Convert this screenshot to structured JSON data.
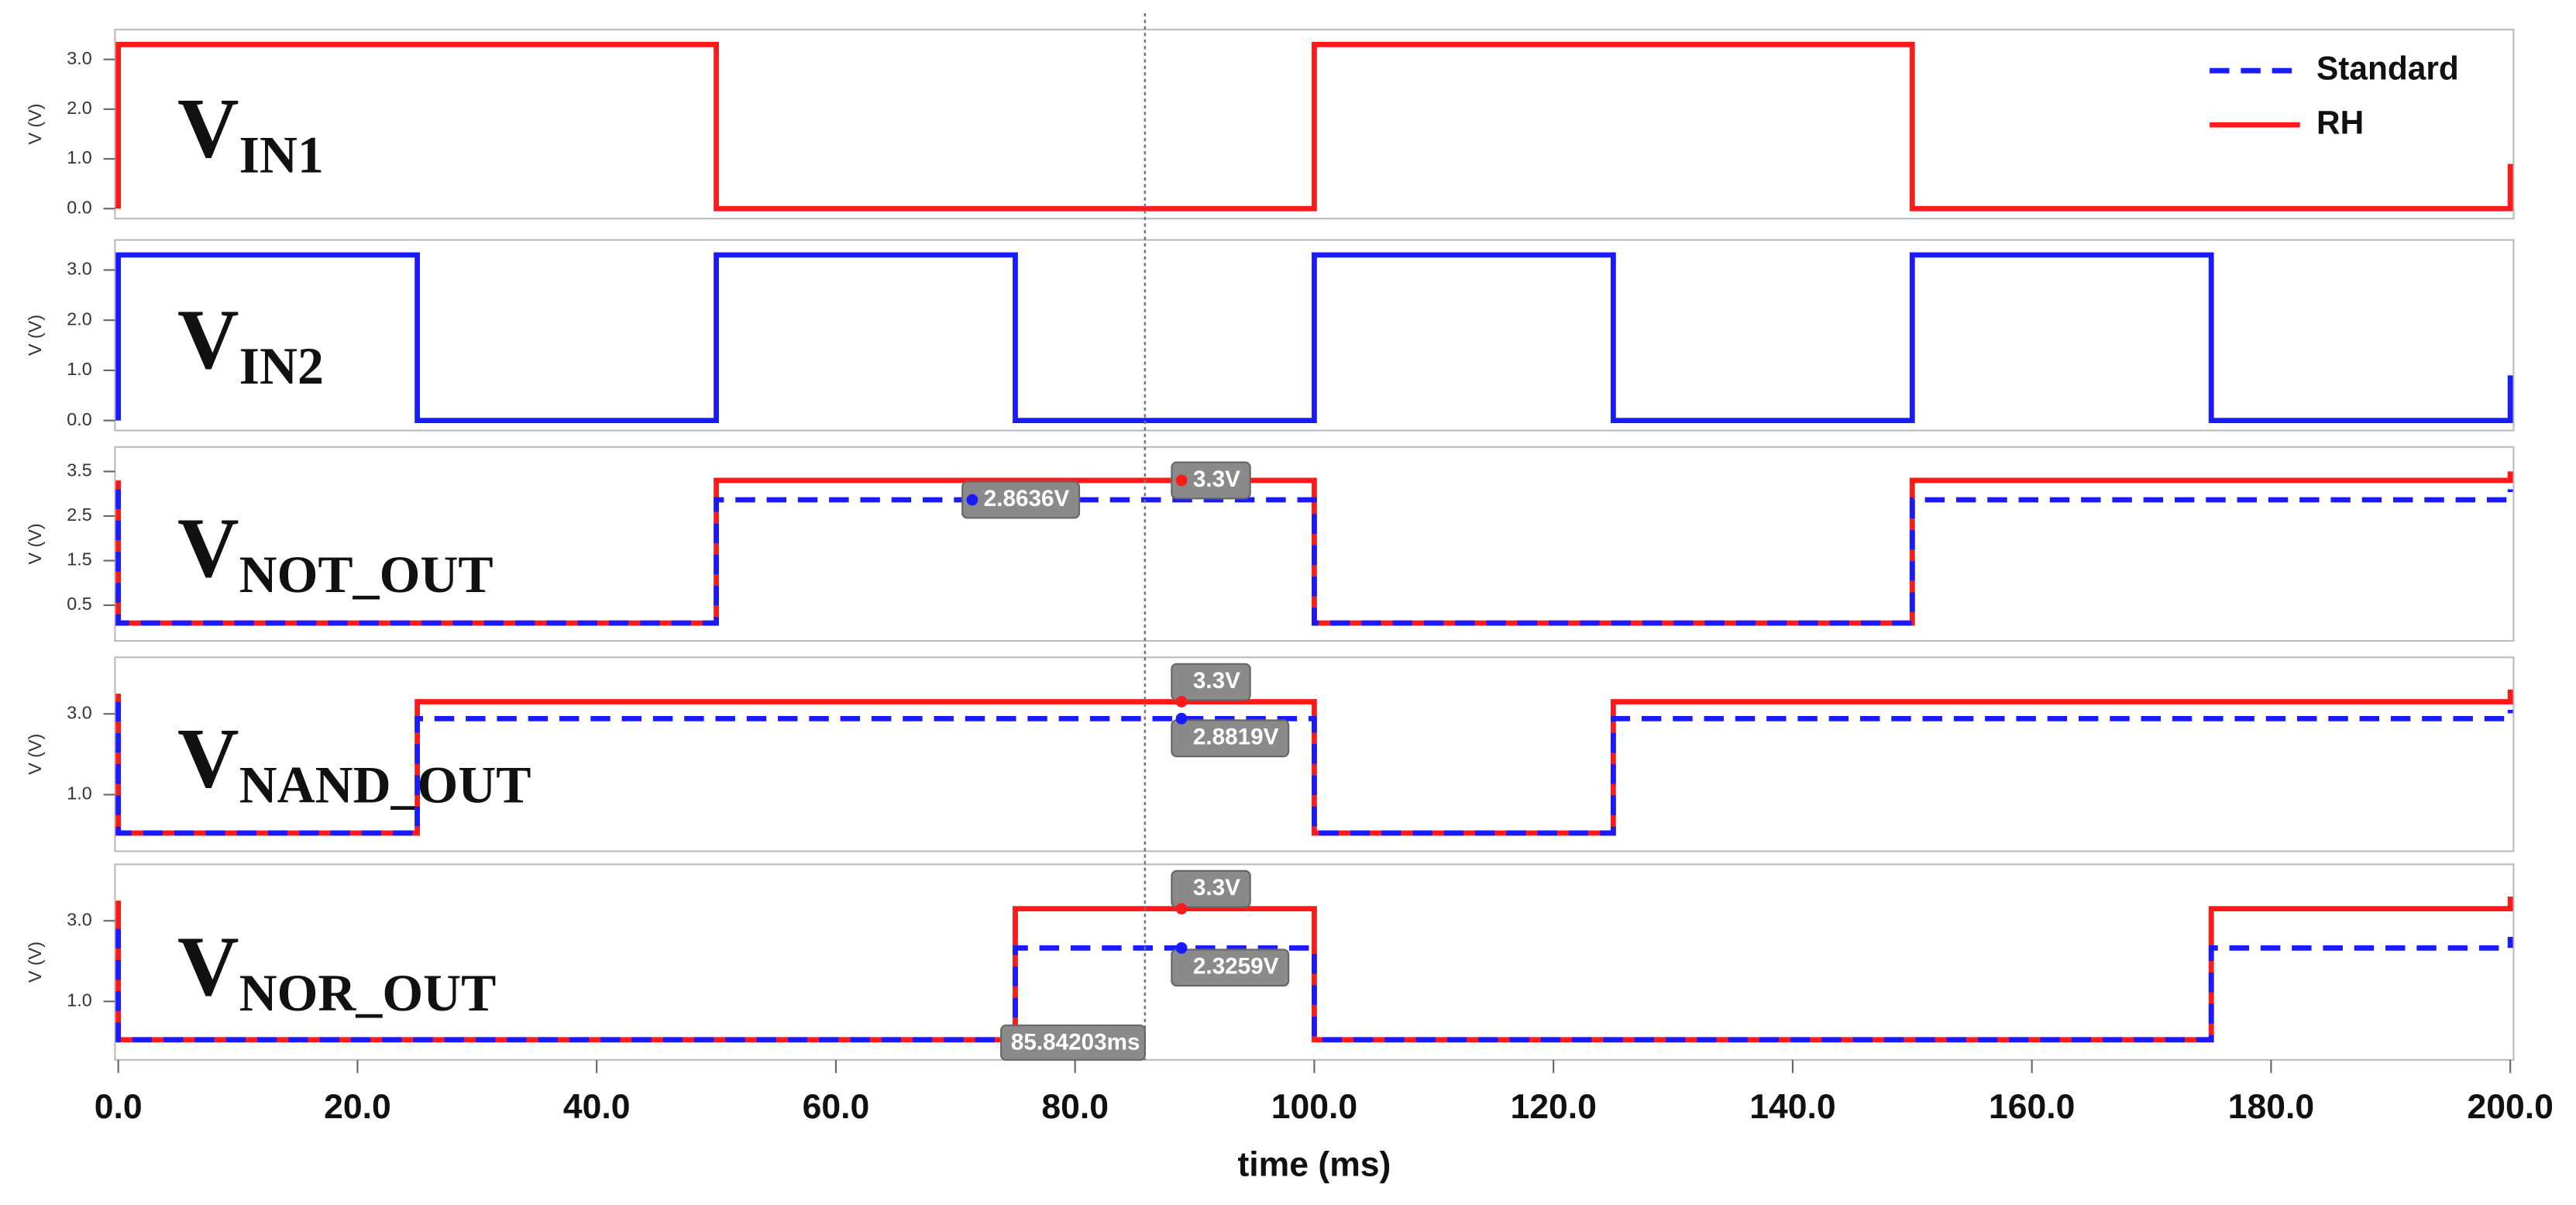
{
  "chart_data": [
    {
      "type": "line",
      "ylabel": "V (V)",
      "label": {
        "main": "V",
        "sub": "IN1"
      },
      "xlim": [
        0,
        200
      ],
      "ylim": [
        -0.2,
        3.6
      ],
      "yticks": [
        {
          "value": 0,
          "label": "0.0"
        },
        {
          "value": 1,
          "label": "1.0"
        },
        {
          "value": 2,
          "label": "2.0"
        },
        {
          "value": 3,
          "label": "3.0"
        }
      ],
      "legend": [
        {
          "name": "Standard",
          "color": "#1a1aff",
          "dash": true
        },
        {
          "name": "RH",
          "color": "#ff1a1a",
          "dash": false
        }
      ],
      "series": [
        {
          "color": "#ff1a1a",
          "dash": false,
          "x": [
            0,
            0,
            50,
            50,
            100,
            100,
            150,
            150,
            200,
            200
          ],
          "values": [
            0,
            3.3,
            3.3,
            0,
            0,
            3.3,
            3.3,
            0,
            0,
            0.9
          ]
        }
      ]
    },
    {
      "type": "line",
      "ylabel": "V (V)",
      "label": {
        "main": "V",
        "sub": "IN2"
      },
      "xlim": [
        0,
        200
      ],
      "ylim": [
        -0.2,
        3.6
      ],
      "yticks": [
        {
          "value": 0,
          "label": "0.0"
        },
        {
          "value": 1,
          "label": "1.0"
        },
        {
          "value": 2,
          "label": "2.0"
        },
        {
          "value": 3,
          "label": "3.0"
        }
      ],
      "series": [
        {
          "color": "#1a1aff",
          "dash": false,
          "x": [
            0,
            0,
            25,
            25,
            50,
            50,
            75,
            75,
            100,
            100,
            125,
            125,
            150,
            150,
            175,
            175,
            200,
            200
          ],
          "values": [
            0,
            3.3,
            3.3,
            0,
            0,
            3.3,
            3.3,
            0,
            0,
            3.3,
            3.3,
            0,
            0,
            3.3,
            3.3,
            0,
            0,
            0.9
          ]
        }
      ]
    },
    {
      "type": "line",
      "ylabel": "V (V)",
      "label": {
        "main": "V",
        "sub": "NOT_OUT"
      },
      "xlim": [
        0,
        200
      ],
      "ylim": [
        -0.3,
        4.05
      ],
      "yticks": [
        0.5,
        1.5,
        2.5,
        3.5
      ],
      "series": [
        {
          "color": "#ff1a1a",
          "dash": false,
          "x": [
            0,
            0,
            50,
            50,
            100,
            100,
            150,
            150,
            200,
            200
          ],
          "values": [
            3.3,
            0.1,
            0.1,
            3.3,
            3.3,
            0.1,
            0.1,
            3.3,
            3.3,
            3.5
          ]
        },
        {
          "color": "#1a1aff",
          "dash": true,
          "x": [
            0,
            0,
            50,
            50,
            100,
            100,
            150,
            150,
            200,
            200
          ],
          "values": [
            3.1,
            0.1,
            0.1,
            2.8636,
            2.8636,
            0.1,
            0.1,
            2.8636,
            2.8636,
            3.1
          ]
        }
      ],
      "annotations": [
        {
          "label": "2.8636V",
          "value": 2.8636,
          "x": 71.4,
          "color": "#1a1aff"
        },
        {
          "label": "3.3V",
          "value": 3.3,
          "x": 88.9,
          "color": "#ff1a1a"
        }
      ]
    },
    {
      "type": "line",
      "ylabel": "V (V)",
      "label": {
        "main": "V",
        "sub": "NAND_OUT"
      },
      "xlim": [
        0,
        200
      ],
      "ylim": [
        -0.4,
        4.4
      ],
      "yticks": [
        {
          "value": 1,
          "label": "1.0"
        },
        {
          "value": 3,
          "label": "3.0"
        }
      ],
      "series": [
        {
          "color": "#ff1a1a",
          "dash": false,
          "x": [
            0,
            0,
            25,
            25,
            100,
            100,
            125,
            125,
            200,
            200
          ],
          "values": [
            3.5,
            0.05,
            0.05,
            3.3,
            3.3,
            0.05,
            0.05,
            3.3,
            3.3,
            3.6
          ]
        },
        {
          "color": "#1a1aff",
          "dash": true,
          "x": [
            0,
            0,
            25,
            25,
            100,
            100,
            125,
            125,
            200,
            200
          ],
          "values": [
            3.3,
            0.05,
            0.05,
            2.8819,
            2.8819,
            0.05,
            0.05,
            2.8819,
            2.8819,
            3.1
          ]
        }
      ],
      "annotations": [
        {
          "label": "3.3V",
          "value": 3.3,
          "x": 88.9,
          "color": "#ff1a1a"
        },
        {
          "label": "2.8819V",
          "value": 2.8819,
          "x": 88.9,
          "color": "#1a1aff"
        }
      ]
    },
    {
      "type": "line",
      "ylabel": "V (V)",
      "label": {
        "main": "V",
        "sub": "NOR_OUT"
      },
      "xlim": [
        0,
        200
      ],
      "ylim": [
        -0.45,
        4.4
      ],
      "yticks": [
        {
          "value": 1,
          "label": "1.0"
        },
        {
          "value": 3,
          "label": "3.0"
        }
      ],
      "series": [
        {
          "color": "#ff1a1a",
          "dash": false,
          "x": [
            0,
            0,
            75,
            75,
            100,
            100,
            175,
            175,
            200,
            200
          ],
          "values": [
            3.5,
            0.05,
            0.05,
            3.3,
            3.3,
            0.05,
            0.05,
            3.3,
            3.3,
            3.6
          ]
        },
        {
          "color": "#1a1aff",
          "dash": true,
          "x": [
            0,
            0,
            75,
            75,
            100,
            100,
            175,
            175,
            200,
            200
          ],
          "values": [
            2.8,
            0.05,
            0.05,
            2.3259,
            2.3259,
            0.05,
            0.05,
            2.3259,
            2.3259,
            2.6
          ]
        }
      ],
      "annotations": [
        {
          "label": "3.3V",
          "value": 3.3,
          "x": 88.9,
          "color": "#ff1a1a"
        },
        {
          "label": "2.3259V",
          "value": 2.3259,
          "x": 88.9,
          "color": "#1a1aff"
        }
      ],
      "cursor": {
        "value": 85.84203,
        "label": "85.84203ms"
      },
      "xlabel": "time (ms)",
      "xticks": [
        {
          "value": 0,
          "label": "0.0"
        },
        {
          "value": 20,
          "label": "20.0"
        },
        {
          "value": 40,
          "label": "40.0"
        },
        {
          "value": 60,
          "label": "60.0"
        },
        {
          "value": 80,
          "label": "80.0"
        },
        {
          "value": 100,
          "label": "100.0"
        },
        {
          "value": 120,
          "label": "120.0"
        },
        {
          "value": 140,
          "label": "140.0"
        },
        {
          "value": 160,
          "label": "160.0"
        },
        {
          "value": 180,
          "label": "180.0"
        },
        {
          "value": 200,
          "label": "200.0"
        }
      ]
    }
  ]
}
